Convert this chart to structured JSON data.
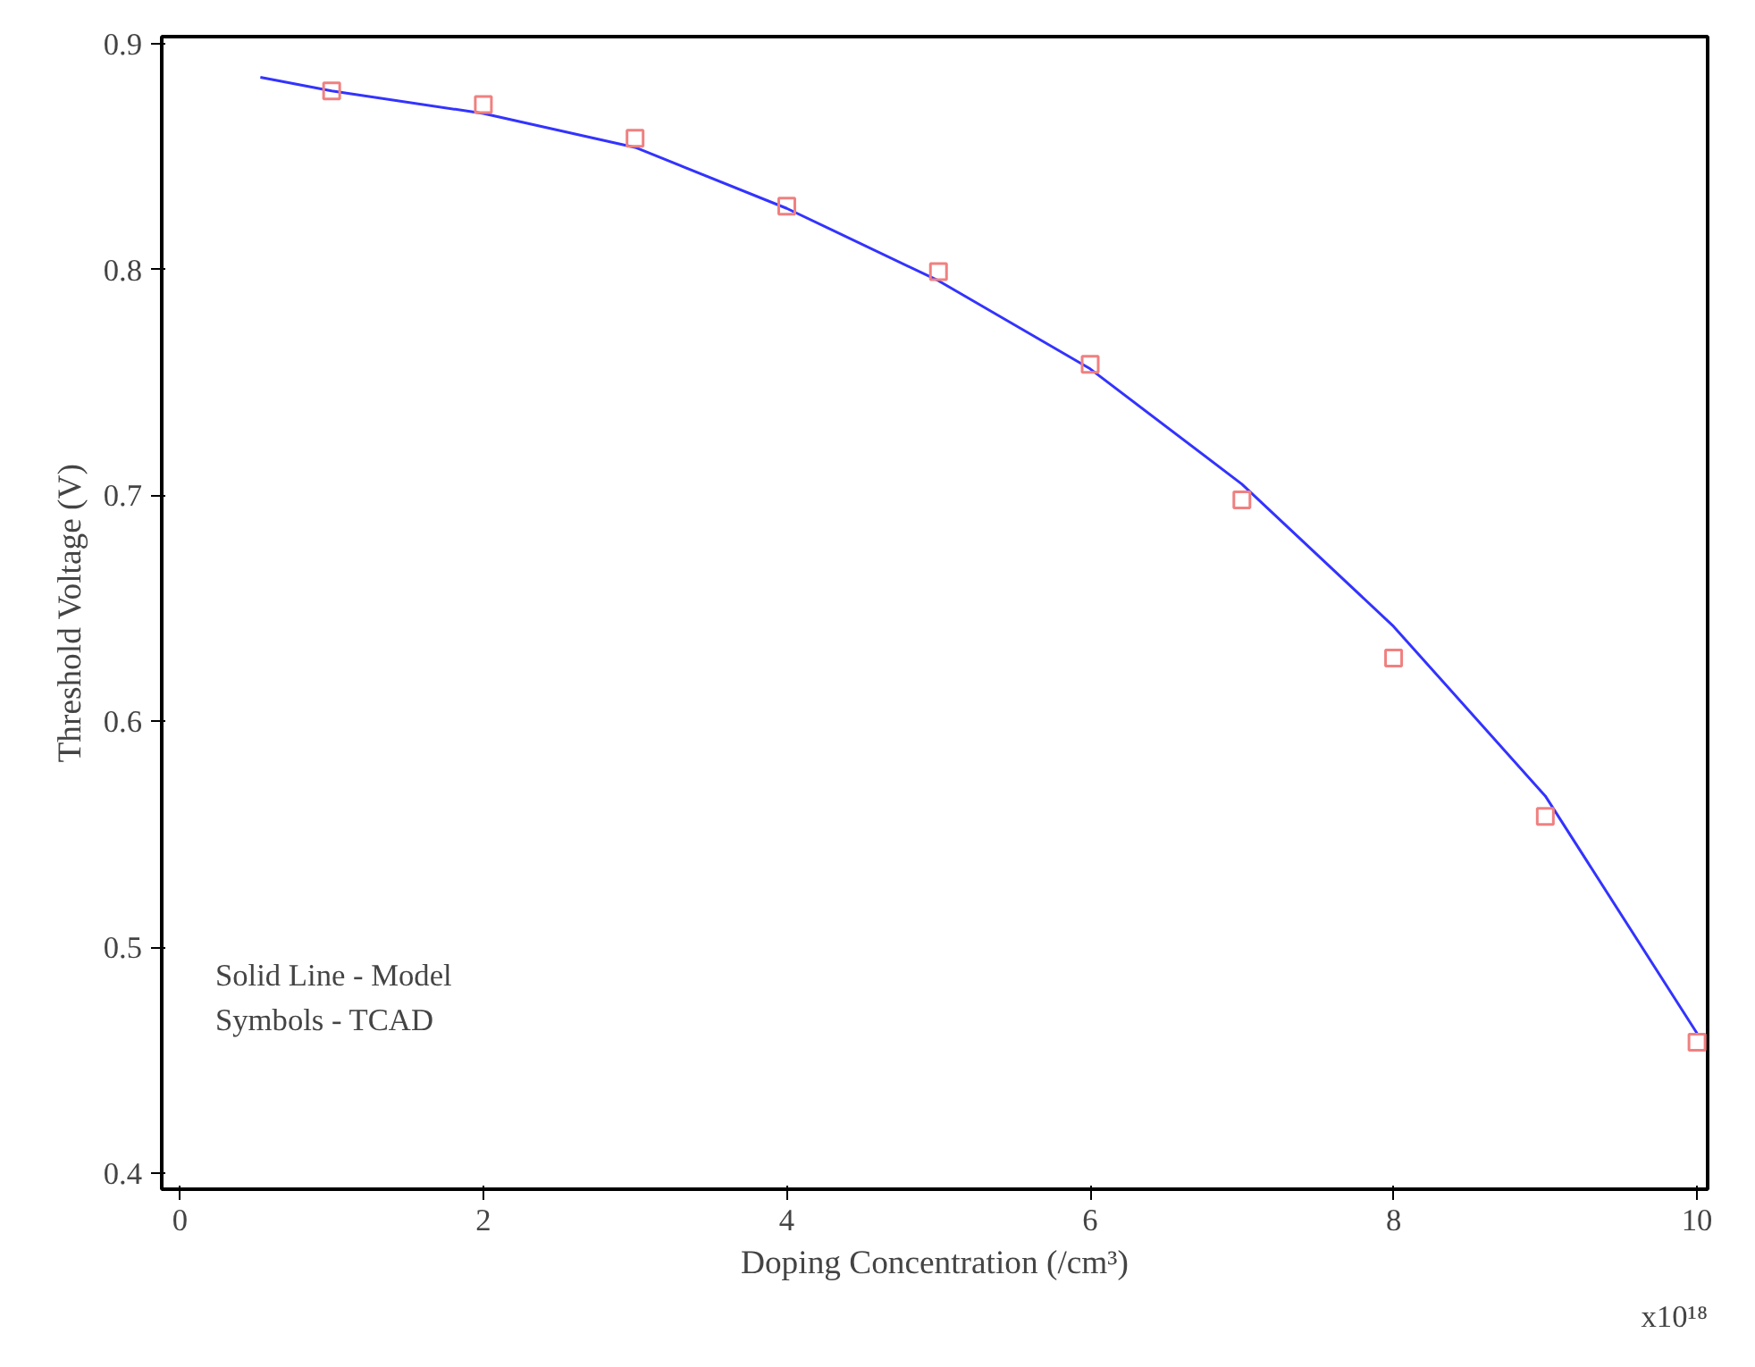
{
  "chart_data": {
    "type": "scatter",
    "xlabel": "Doping Concentration (/cm³)",
    "ylabel": "Threshold Voltage (V)",
    "xlim": [
      -0.12,
      10.07
    ],
    "ylim": [
      0.393,
      0.903
    ],
    "xticks": [
      0,
      2,
      4,
      6,
      8,
      10
    ],
    "yticks": [
      0.4,
      0.5,
      0.6,
      0.7,
      0.8,
      0.9
    ],
    "grid": false,
    "annotations": [
      "x10¹⁸",
      "Solid Line - Model",
      "Symbols - TCAD"
    ],
    "series": [
      {
        "type": "line",
        "color": "#3333ff",
        "line_style": "solid",
        "marker": "none",
        "x": [
          0.53,
          1,
          2,
          3,
          4,
          5,
          6,
          7,
          8,
          9,
          10
        ],
        "values": [
          0.885,
          0.879,
          0.869,
          0.854,
          0.827,
          0.795,
          0.756,
          0.705,
          0.642,
          0.567,
          0.462
        ]
      },
      {
        "color": "#f08080",
        "marker": "square",
        "x": [
          1,
          2,
          3,
          4,
          5,
          6,
          7,
          8,
          9,
          10
        ],
        "values": [
          0.879,
          0.873,
          0.858,
          0.828,
          0.799,
          0.758,
          0.698,
          0.628,
          0.558,
          0.458
        ]
      }
    ]
  }
}
